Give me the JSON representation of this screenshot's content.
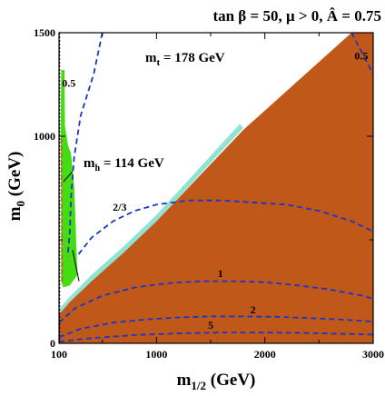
{
  "chart_data": {
    "type": "area",
    "title": "tan β = 50, μ > 0, Â = 0.75",
    "xlabel": "m",
    "xlabel_sub": "1/2",
    "xlabel_unit": " (GeV)",
    "ylabel": "m",
    "ylabel_sub": "0",
    "ylabel_unit": " (GeV)",
    "xlim": [
      100,
      3000
    ],
    "ylim": [
      0,
      1500
    ],
    "x_ticks": [
      100,
      1000,
      2000,
      3000
    ],
    "x_tick_labels": [
      "100",
      "1000",
      "2000",
      "3000"
    ],
    "y_ticks": [
      0,
      1000,
      1500
    ],
    "y_tick_labels": [
      "0",
      "1000",
      "1500"
    ],
    "annotations": {
      "mt": "m",
      "mt_sub": "t",
      "mt_value": " = 178 GeV",
      "mh": "m",
      "mh_sub": "h",
      "mh_value": " = 114 GeV"
    },
    "colors": {
      "stau_lsp": "#C0581A",
      "b_to_s_gamma": "#44DD11",
      "relic_density": "#8FE3D2",
      "contours": "#1A35C8",
      "chargino_limit": "#000000",
      "g_minus_2": "#E2453C"
    },
    "regions": [
      {
        "id": "stau-lsp",
        "color": "#C0581A",
        "polygon": [
          [
            100,
            0
          ],
          [
            3000,
            0
          ],
          [
            3000,
            1500
          ],
          [
            2800,
            1500
          ],
          [
            1800,
            1030
          ],
          [
            1000,
            590
          ],
          [
            700,
            440
          ],
          [
            400,
            300
          ],
          [
            200,
            200
          ],
          [
            100,
            140
          ]
        ]
      },
      {
        "id": "b-to-s-gamma",
        "color": "#44DD11",
        "polygon": [
          [
            120,
            1320
          ],
          [
            150,
            1320
          ],
          [
            155,
            1050
          ],
          [
            185,
            950
          ],
          [
            210,
            920
          ],
          [
            240,
            760
          ],
          [
            250,
            620
          ],
          [
            270,
            330
          ],
          [
            200,
            280
          ],
          [
            140,
            270
          ],
          [
            118,
            300
          ],
          [
            120,
            700
          ],
          [
            115,
            1000
          ]
        ]
      },
      {
        "id": "relic-density",
        "color": "#8FE3D2",
        "polygon": [
          [
            100,
            140
          ],
          [
            200,
            200
          ],
          [
            400,
            300
          ],
          [
            700,
            440
          ],
          [
            1000,
            590
          ],
          [
            1800,
            1040
          ],
          [
            1770,
            1060
          ],
          [
            1000,
            620
          ],
          [
            700,
            470
          ],
          [
            400,
            330
          ],
          [
            200,
            225
          ],
          [
            100,
            165
          ]
        ]
      }
    ],
    "series": [
      {
        "name": "0.5",
        "label_at": [
          190,
          1240
        ],
        "x": [
          500,
          420,
          300,
          240,
          210,
          200,
          180
        ],
        "y": [
          1500,
          1300,
          1100,
          900,
          700,
          540,
          420
        ]
      },
      {
        "name": "0.5",
        "label_at": [
          2890,
          1370
        ],
        "x": [
          2800,
          2900,
          3000
        ],
        "y": [
          1500,
          1400,
          1300
        ]
      },
      {
        "name": "2/3",
        "label_at": [
          660,
          640
        ],
        "x": [
          280,
          400,
          600,
          800,
          1000,
          1300,
          1600,
          1900,
          2200,
          2500,
          2800,
          3000
        ],
        "y": [
          430,
          510,
          590,
          640,
          670,
          690,
          690,
          680,
          670,
          640,
          590,
          540
        ]
      },
      {
        "name": "1",
        "label_at": [
          1590,
          320
        ],
        "x": [
          100,
          250,
          500,
          800,
          1100,
          1400,
          1700,
          2000,
          2300,
          2600,
          2900,
          3000
        ],
        "y": [
          100,
          170,
          230,
          270,
          290,
          300,
          300,
          295,
          280,
          260,
          230,
          215
        ]
      },
      {
        "name": "2",
        "label_at": [
          1890,
          145
        ],
        "x": [
          100,
          300,
          600,
          900,
          1200,
          1500,
          1800,
          2100,
          2400,
          2700,
          3000
        ],
        "y": [
          30,
          70,
          100,
          115,
          125,
          130,
          130,
          128,
          122,
          115,
          105
        ]
      },
      {
        "name": "5",
        "label_at": [
          1500,
          70
        ],
        "x": [
          100,
          400,
          800,
          1200,
          1600,
          2000,
          2400,
          2800,
          3000
        ],
        "y": [
          8,
          25,
          40,
          48,
          52,
          52,
          50,
          45,
          42
        ]
      }
    ],
    "lines": [
      {
        "id": "chargino-limit",
        "style": "dotted",
        "color": "#000000",
        "x": [
          104,
          104
        ],
        "y": [
          0,
          1500
        ]
      },
      {
        "id": "g-minus-2",
        "style": "dashed",
        "color": "#E2453C",
        "x": [
          130,
          125,
          122
        ],
        "y": [
          300,
          650,
          1000
        ]
      },
      {
        "id": "higgs-114",
        "style": "solid",
        "color": "#000000",
        "x": [
          285,
          225
        ],
        "y": [
          300,
          450
        ]
      },
      {
        "id": "higgs-114-pointer",
        "style": "solid",
        "color": "#000000",
        "x": [
          225,
          140
        ],
        "y": [
          830,
          780
        ]
      }
    ]
  }
}
